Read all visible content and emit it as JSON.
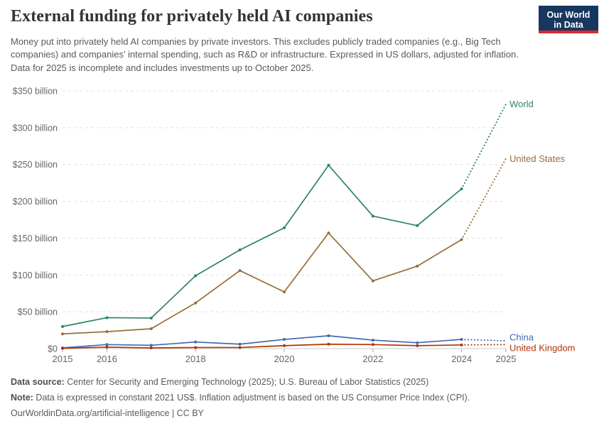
{
  "header": {
    "title": "External funding for privately held AI companies",
    "subtitle": "Money put into privately held AI companies by private investors. This excludes publicly traded companies (e.g., Big Tech companies) and companies’ internal spending, such as R&D or infrastructure. Expressed in US dollars, adjusted for inflation. Data for 2025 is incomplete and includes investments up to October 2025.",
    "logo": {
      "line1": "Our World",
      "line2": "in Data",
      "bg_color": "#18375f",
      "accent_color": "#d62a33"
    }
  },
  "chart_data": {
    "type": "line",
    "title": "External funding for privately held AI companies",
    "x": [
      2015,
      2016,
      2017,
      2018,
      2019,
      2020,
      2021,
      2022,
      2023,
      2024,
      2025
    ],
    "xlim": [
      2015,
      2025
    ],
    "ylim": [
      0,
      350
    ],
    "unit": "US$ billion",
    "grid": "horizontal-dashed",
    "legend_position": "right-of-line-ends",
    "dotted_from_x": 2024,
    "dotted_note": "2024–2025 segment dotted: 2025 data incomplete (through October 2025)",
    "yticks": [
      0,
      50,
      100,
      150,
      200,
      250,
      300,
      350
    ],
    "ytick_labels": [
      "$0",
      "$50 billion",
      "$100 billion",
      "$150 billion",
      "$200 billion",
      "$250 billion",
      "$300 billion",
      "$350 billion"
    ],
    "xticks": [
      2015,
      2016,
      2018,
      2020,
      2022,
      2024,
      2025
    ],
    "series": [
      {
        "name": "World",
        "color": "#2C8465",
        "values": [
          30,
          42,
          41.5,
          99,
          134,
          164,
          249,
          180,
          167,
          217,
          332
        ]
      },
      {
        "name": "United States",
        "color": "#996D39",
        "values": [
          20,
          23,
          27,
          62,
          106,
          77,
          157,
          92,
          112,
          148,
          258
        ]
      },
      {
        "name": "China",
        "color": "#3D6BB3",
        "values": [
          1,
          5.5,
          4.5,
          9,
          6,
          12.5,
          17.5,
          11.5,
          8,
          12.5,
          10.5
        ]
      },
      {
        "name": "United Kingdom",
        "color": "#B13507",
        "values": [
          0.4,
          2,
          1,
          1.5,
          1.5,
          4,
          6,
          5.5,
          4,
          5,
          5.5
        ]
      }
    ]
  },
  "footer": {
    "datasource_label": "Data source:",
    "datasource_text": " Center for Security and Emerging Technology (2025); U.S. Bureau of Labor Statistics (2025)",
    "note_label": "Note:",
    "note_text": " Data is expressed in constant 2021 US$. Inflation adjustment is based on the US Consumer Price Index (CPI).",
    "url_line": "OurWorldinData.org/artificial-intelligence | CC BY"
  }
}
